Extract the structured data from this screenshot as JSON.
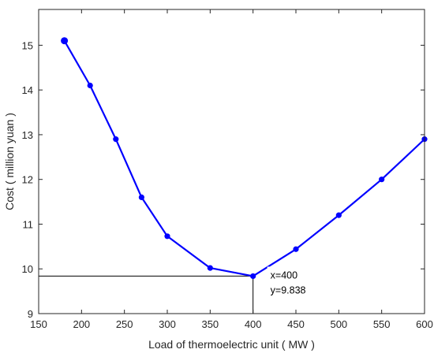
{
  "chart_data": {
    "type": "line",
    "title": "",
    "xlabel": "Load of thermoelectric unit ( MW )",
    "ylabel": "Cost ( million yuan )",
    "xlim": [
      150,
      600
    ],
    "ylim": [
      9,
      15.8
    ],
    "x_ticks": [
      150,
      200,
      250,
      300,
      350,
      400,
      450,
      500,
      550,
      600
    ],
    "y_ticks": [
      9,
      10,
      11,
      12,
      13,
      14,
      15
    ],
    "grid": false,
    "series": [
      {
        "x": [
          180,
          210,
          240,
          270,
          300,
          350,
          400,
          450,
          500,
          550,
          600
        ],
        "y": [
          15.1,
          14.1,
          12.9,
          11.6,
          10.73,
          10.02,
          9.838,
          10.44,
          11.2,
          12.0,
          12.9
        ],
        "color": "#0000ff"
      }
    ],
    "annotation": {
      "x": 400,
      "y": 9.838,
      "x_text": "x=400",
      "y_text": "y=9.838"
    }
  }
}
